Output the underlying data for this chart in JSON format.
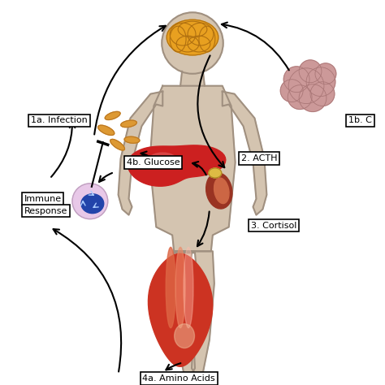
{
  "background_color": "#ffffff",
  "body_color": "#d4c4b0",
  "body_outline": "#a09080",
  "labels": {
    "infection": "1a. Infection",
    "glucose": "4b. Glucose",
    "acth": "2. ACTH",
    "cortisol": "3. Cortisol",
    "amino_acids": "4a. Amino Acids",
    "immune_line1": "Immune",
    "immune_line2": "Response",
    "chronic": "1b. C"
  },
  "brain_color": "#e8a020",
  "brain_dark": "#b07010",
  "liver_color": "#cc2020",
  "liver_highlight": "#dd5050",
  "kidney_color": "#993322",
  "kidney_inner": "#cc6644",
  "adrenal_color": "#ddbb44",
  "muscle_base": "#cc3322",
  "muscle_mid": "#dd6644",
  "muscle_light": "#eebb99",
  "bacteria_color": "#dd9933",
  "bacteria_dark": "#bb7722",
  "immune_outer": "#e8c8e8",
  "immune_inner": "#2244aa",
  "lymph_color": "#cc9999",
  "lymph_dark": "#aa7777"
}
